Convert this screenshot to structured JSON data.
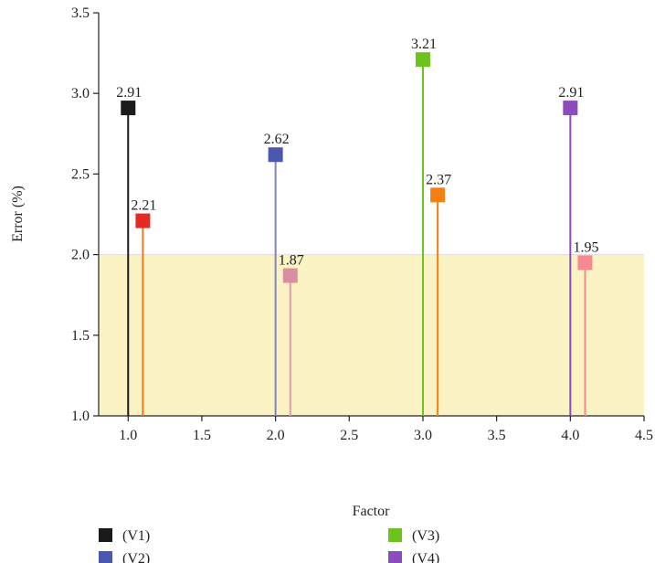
{
  "chart_data": {
    "type": "scatter",
    "style": "stem",
    "title": "",
    "xlabel": "Factor",
    "ylabel": "Error (%)",
    "xlim": [
      0.8,
      4.5
    ],
    "ylim": [
      1.0,
      3.5
    ],
    "x_ticks": [
      "1.0",
      "1.5",
      "2.0",
      "2.5",
      "3.0",
      "3.5",
      "4.0",
      "4.5"
    ],
    "y_ticks": [
      "1.0",
      "1.5",
      "2.0",
      "2.5",
      "3.0",
      "3.5"
    ],
    "grid": false,
    "highlight_band": {
      "y_from": 1.0,
      "y_to": 2.0,
      "color": "#fbf3c4"
    },
    "legend_position": "bottom",
    "series": [
      {
        "name": "(V1)",
        "color": "#1a1a1a",
        "stem_color": "#1a1a1a",
        "points": [
          {
            "x": 1.0,
            "y": 2.91,
            "label": "2.91"
          }
        ]
      },
      {
        "name": "",
        "color": "#e22b22",
        "stem_color": "#f07a1a",
        "points": [
          {
            "x": 1.1,
            "y": 2.21,
            "label": "2.21"
          }
        ]
      },
      {
        "name": "(V2)",
        "color": "#4a56b0",
        "stem_color": "#7d86c2",
        "points": [
          {
            "x": 2.0,
            "y": 2.62,
            "label": "2.62"
          }
        ]
      },
      {
        "name": "",
        "color": "#d88fa0",
        "stem_color": "#e79aa8",
        "points": [
          {
            "x": 2.1,
            "y": 1.87,
            "label": "1.87"
          }
        ]
      },
      {
        "name": "(V3)",
        "color": "#6cc31e",
        "stem_color": "#6cc31e",
        "points": [
          {
            "x": 3.0,
            "y": 3.21,
            "label": "3.21"
          }
        ]
      },
      {
        "name": "",
        "color": "#f57f10",
        "stem_color": "#f57f10",
        "points": [
          {
            "x": 3.1,
            "y": 2.37,
            "label": "2.37"
          }
        ]
      },
      {
        "name": "(V4)",
        "color": "#8b4cbe",
        "stem_color": "#8b4cbe",
        "points": [
          {
            "x": 4.0,
            "y": 2.91,
            "label": "2.91"
          }
        ]
      },
      {
        "name": "",
        "color": "#f68a90",
        "stem_color": "#f68a90",
        "points": [
          {
            "x": 4.1,
            "y": 1.95,
            "label": "1.95"
          }
        ]
      }
    ]
  }
}
